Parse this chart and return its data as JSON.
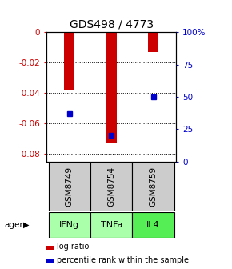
{
  "title": "GDS498 / 4773",
  "samples": [
    "GSM8749",
    "GSM8754",
    "GSM8759"
  ],
  "agents": [
    "IFNg",
    "TNFa",
    "IL4"
  ],
  "log_ratios": [
    -0.038,
    -0.073,
    -0.013
  ],
  "percentile_ranks": [
    37,
    20,
    50
  ],
  "ylim_left": [
    -0.085,
    0.0
  ],
  "ylim_right": [
    0,
    100
  ],
  "yticks_left": [
    0,
    -0.02,
    -0.04,
    -0.06,
    -0.08
  ],
  "yticks_right": [
    0,
    25,
    50,
    75,
    100
  ],
  "ytick_right_labels": [
    "0",
    "25",
    "50",
    "75",
    "100%"
  ],
  "bar_color": "#cc0000",
  "dot_color": "#0000cc",
  "agent_colors": [
    "#aaffaa",
    "#aaffaa",
    "#55ee55"
  ],
  "sample_box_color": "#cccccc",
  "left_axis_color": "#cc0000",
  "right_axis_color": "#0000cc",
  "legend_bar_label": "log ratio",
  "legend_dot_label": "percentile rank within the sample",
  "figsize": [
    2.9,
    3.36
  ],
  "dpi": 100
}
